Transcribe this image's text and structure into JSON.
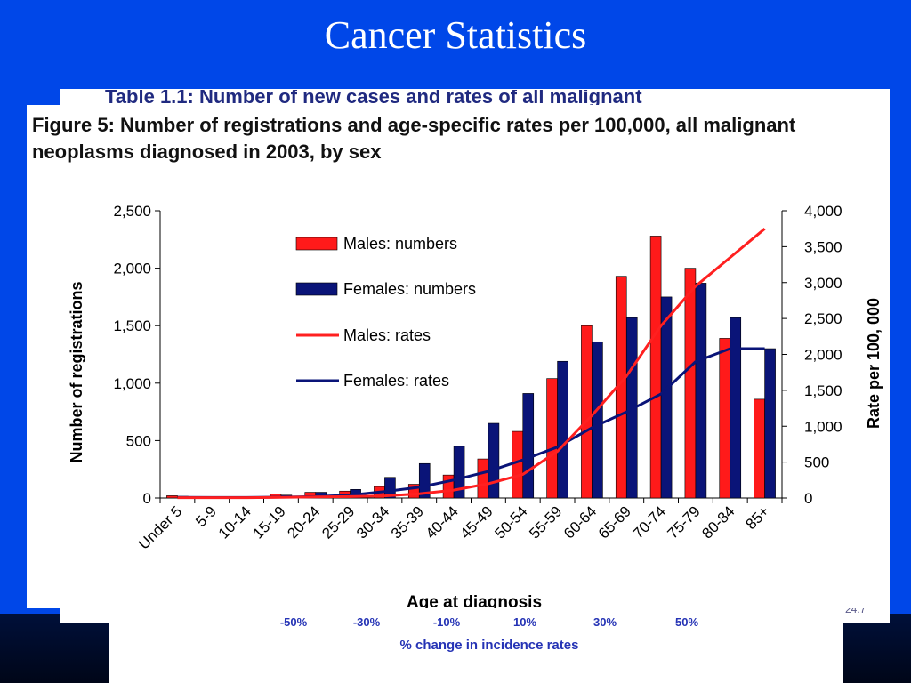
{
  "slide": {
    "title": "Cancer Statistics"
  },
  "back_image": {
    "header_fragment": "Table 1.1: Number of new cases and rates of all malignant",
    "scale_labels": [
      "-50%",
      "-30%",
      "-10%",
      "10%",
      "30%",
      "50%"
    ],
    "scale_caption": "% change in incidence rates",
    "corner_mark": "24.7"
  },
  "figure": {
    "caption": "Figure 5: Number of registrations and age-specific rates per 100,000, all malignant neoplasms diagnosed in 2003, by sex"
  },
  "colors": {
    "slide_background": "#0047e8",
    "males": "#ff1a1a",
    "females": "#0a1478",
    "males_rate_line": "#ff2020",
    "females_rate_line": "#0a1478"
  },
  "chart_data": {
    "type": "bar",
    "categories": [
      "Under 5",
      "5-9",
      "10-14",
      "15-19",
      "20-24",
      "25-29",
      "30-34",
      "35-39",
      "40-44",
      "45-49",
      "50-54",
      "55-59",
      "60-64",
      "65-69",
      "70-74",
      "75-79",
      "80-84",
      "85+"
    ],
    "xlabel": "Age at diagnosis",
    "ylabel": "Number of registrations",
    "ylabel_right": "Rate per 100, 000",
    "ylim": [
      0,
      2500
    ],
    "ylim_right": [
      0,
      4000
    ],
    "yticks": [
      "0",
      "500",
      "1,000",
      "1,500",
      "2,000",
      "2,500"
    ],
    "yticks_right": [
      "0",
      "500",
      "1,000",
      "1,500",
      "2,000",
      "2,500",
      "3,000",
      "3,500",
      "4,000"
    ],
    "legend_position": "top-left",
    "grid": false,
    "series": [
      {
        "name": "Males: numbers",
        "kind": "bar",
        "axis": "left",
        "values": [
          20,
          10,
          10,
          35,
          50,
          60,
          100,
          120,
          200,
          340,
          580,
          1040,
          1500,
          1930,
          2280,
          2000,
          1390,
          860
        ]
      },
      {
        "name": "Females: numbers",
        "kind": "bar",
        "axis": "left",
        "values": [
          15,
          10,
          10,
          25,
          50,
          75,
          180,
          300,
          450,
          650,
          910,
          1190,
          1360,
          1570,
          1750,
          1870,
          1570,
          1300
        ]
      },
      {
        "name": "Males: rates",
        "kind": "line",
        "axis": "right",
        "values": [
          5,
          5,
          5,
          10,
          15,
          20,
          30,
          60,
          110,
          200,
          330,
          650,
          1150,
          1700,
          2400,
          2950,
          3350,
          3750
        ]
      },
      {
        "name": "Females: rates",
        "kind": "line",
        "axis": "right",
        "values": [
          10,
          8,
          8,
          12,
          20,
          40,
          90,
          150,
          250,
          370,
          530,
          710,
          980,
          1200,
          1450,
          1900,
          2080,
          2080
        ]
      }
    ]
  }
}
